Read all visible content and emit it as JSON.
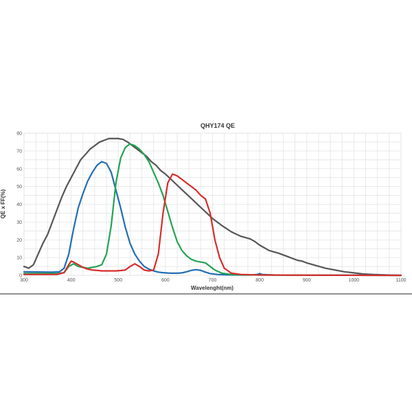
{
  "chart_data": {
    "type": "line",
    "title": "QHY174 QE",
    "xlabel": "Wavelenght(nm)",
    "ylabel": "QE x FF(%)",
    "xlim": [
      300,
      1100
    ],
    "ylim": [
      0,
      80
    ],
    "xticks": [
      "300",
      "400",
      "500",
      "600",
      "700",
      "800",
      "900",
      "1000",
      "1100"
    ],
    "yticks": [
      "0",
      "10",
      "20",
      "30",
      "40",
      "50",
      "60",
      "70",
      "80"
    ],
    "grid": true,
    "series": [
      {
        "color": "#555555",
        "x": [
          300,
          310,
          320,
          330,
          340,
          350,
          360,
          370,
          380,
          390,
          400,
          410,
          420,
          430,
          440,
          450,
          460,
          470,
          480,
          490,
          500,
          510,
          520,
          530,
          540,
          550,
          560,
          570,
          580,
          590,
          600,
          610,
          620,
          630,
          640,
          650,
          660,
          670,
          680,
          690,
          700,
          720,
          740,
          760,
          780,
          790,
          800,
          810,
          820,
          840,
          860,
          880,
          890,
          900,
          920,
          940,
          960,
          980,
          1000,
          1020,
          1040,
          1060,
          1080,
          1100
        ],
        "y": [
          5,
          4,
          6,
          12,
          18,
          23,
          30,
          37,
          44,
          50,
          55,
          60,
          65,
          68,
          71,
          73,
          75,
          76,
          77,
          77,
          77,
          76.5,
          75,
          73,
          71,
          69,
          67,
          64,
          62,
          59,
          57,
          54.5,
          52,
          49.5,
          47,
          44.5,
          42,
          39.5,
          37,
          34.5,
          32,
          28,
          24.5,
          22,
          20.5,
          19,
          17,
          15.5,
          14,
          12.5,
          10.5,
          8.5,
          8,
          7,
          5.5,
          4,
          3,
          2,
          1.4,
          0.8,
          0.5,
          0.3,
          0.1,
          0
        ]
      },
      {
        "color": "#1f6db3",
        "x": [
          300,
          360,
          375,
          385,
          395,
          405,
          415,
          425,
          435,
          445,
          455,
          465,
          475,
          485,
          495,
          505,
          515,
          525,
          535,
          545,
          555,
          565,
          575,
          585,
          595,
          605,
          615,
          625,
          635,
          645,
          655,
          665,
          675,
          685,
          695,
          710,
          730,
          760,
          780,
          795,
          800,
          805,
          830,
          900,
          1000,
          1100
        ],
        "y": [
          2,
          1.8,
          2,
          4,
          12,
          26,
          38,
          46,
          53,
          58,
          62,
          64,
          63,
          58,
          48,
          38,
          27,
          18,
          12,
          8,
          5,
          3.5,
          2.5,
          1.8,
          1.5,
          1.3,
          1.2,
          1.2,
          1.4,
          2,
          2.8,
          3.2,
          2.8,
          1.8,
          1,
          0.5,
          0.3,
          0.2,
          0.2,
          0.5,
          1,
          0.5,
          0.2,
          0.1,
          0.05,
          0
        ]
      },
      {
        "color": "#22a352",
        "x": [
          300,
          370,
          385,
          395,
          405,
          415,
          425,
          435,
          445,
          455,
          465,
          475,
          485,
          495,
          505,
          515,
          525,
          535,
          545,
          555,
          565,
          575,
          585,
          595,
          605,
          615,
          625,
          635,
          645,
          655,
          665,
          675,
          685,
          695,
          705,
          720,
          740,
          760,
          800,
          900,
          1000,
          1100
        ],
        "y": [
          1,
          1,
          1.5,
          5,
          6.5,
          5,
          4.5,
          4,
          4.5,
          5,
          6,
          12,
          28,
          52,
          66,
          72,
          74,
          73,
          71,
          68,
          64,
          58,
          52,
          45,
          36,
          27,
          19,
          14,
          11,
          9,
          8,
          7.5,
          7,
          5,
          3,
          1.2,
          0.5,
          0.3,
          0.2,
          0.1,
          0.05,
          0
        ]
      },
      {
        "color": "#d62c2c",
        "x": [
          300,
          370,
          385,
          395,
          400,
          405,
          415,
          425,
          435,
          445,
          455,
          465,
          475,
          485,
          495,
          505,
          515,
          525,
          535,
          545,
          555,
          565,
          575,
          585,
          595,
          605,
          615,
          625,
          635,
          645,
          655,
          665,
          675,
          685,
          695,
          705,
          715,
          725,
          740,
          760,
          800,
          900,
          1000,
          1100
        ],
        "y": [
          0.5,
          0.5,
          1.5,
          6,
          8,
          7.5,
          6,
          4.5,
          3.5,
          3,
          2.8,
          2.5,
          2.5,
          2.5,
          2.5,
          2.7,
          3,
          5,
          6.5,
          5,
          3,
          2.5,
          3,
          12,
          35,
          52,
          57,
          56,
          54,
          52,
          50,
          48,
          45,
          43,
          35,
          20,
          10,
          4,
          1.2,
          0.5,
          0.2,
          0.1,
          0.05,
          0
        ]
      }
    ]
  }
}
